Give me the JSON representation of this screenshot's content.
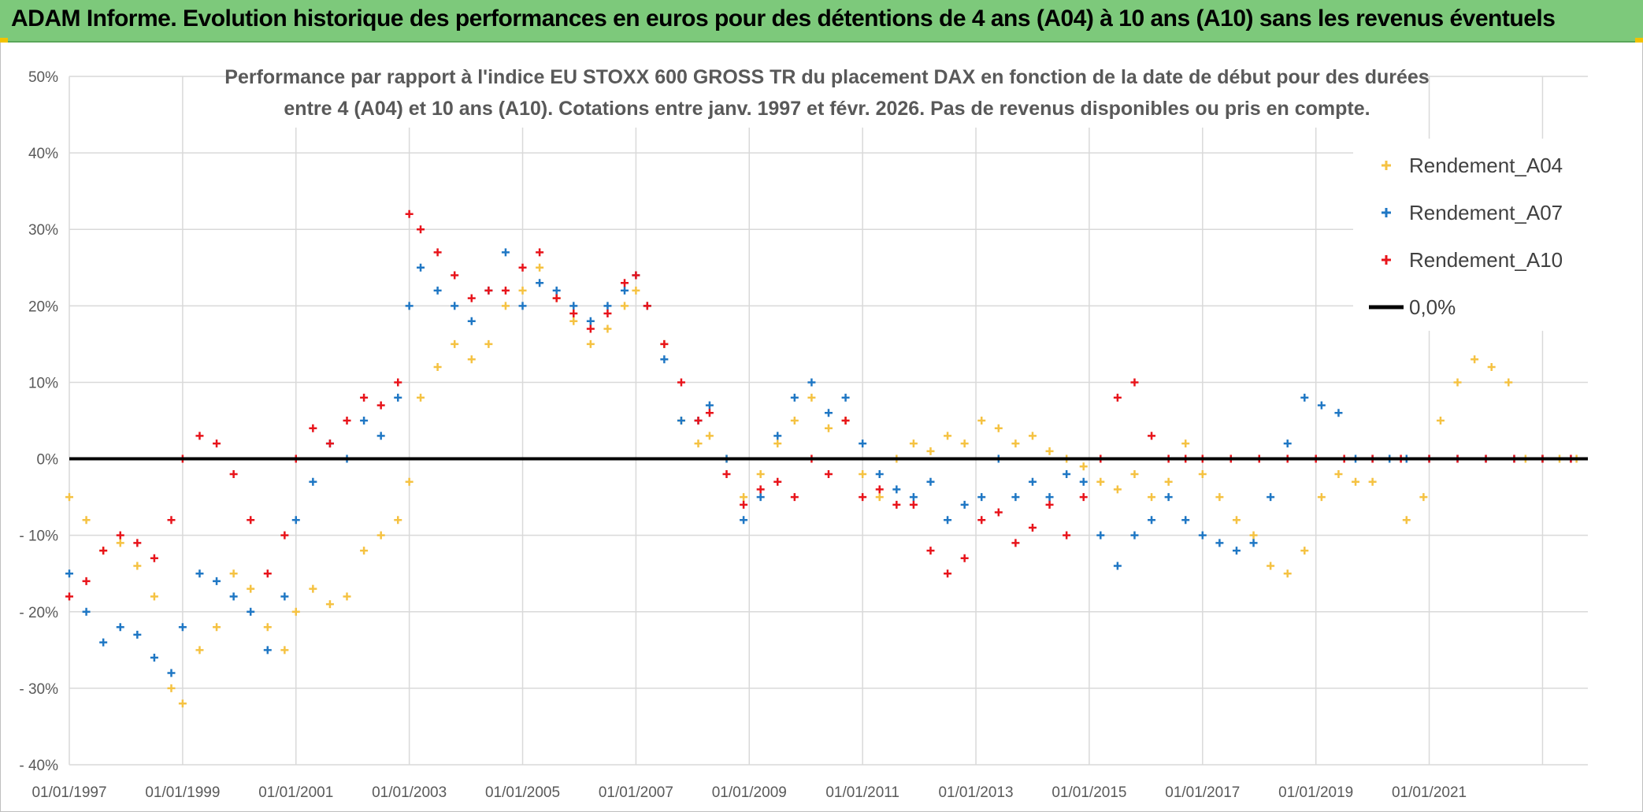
{
  "banner": {
    "title": "ADAM Informe. Evolution historique des performances en euros pour des détentions de 4 ans (A04) à 10 ans (A10) sans les revenus éventuels"
  },
  "chart_data": {
    "type": "scatter",
    "title_lines": [
      "Performance par rapport à l'indice EU STOXX 600 GROSS TR  du placement DAX en fonction de la date de début pour des durées",
      "entre 4 (A04) et 10 ans (A10). Cotations entre janv. 1997 et févr. 2026. Pas de revenus disponibles ou pris en compte."
    ],
    "x_tick_labels": [
      "01/01/1997",
      "01/01/1999",
      "01/01/2001",
      "01/01/2003",
      "01/01/2005",
      "01/01/2007",
      "01/01/2009",
      "01/01/2011",
      "01/01/2013",
      "01/01/2015",
      "01/01/2017",
      "01/01/2019",
      "01/01/2021"
    ],
    "x_range": [
      1997.0,
      2023.8
    ],
    "y_tick_labels": [
      "50%",
      "40%",
      "30%",
      "20%",
      "10%",
      "0%",
      "- 10%",
      "- 20%",
      "- 30%",
      "- 40%"
    ],
    "ylim": [
      -40,
      50
    ],
    "grid": true,
    "legend_position": "top-right",
    "series": [
      {
        "name": "Rendement_A04",
        "color": "#f5c242",
        "marker": "+",
        "points": [
          [
            1997.0,
            -5
          ],
          [
            1997.3,
            -8
          ],
          [
            1997.6,
            -12
          ],
          [
            1997.9,
            -11
          ],
          [
            1998.2,
            -14
          ],
          [
            1998.5,
            -18
          ],
          [
            1998.8,
            -30
          ],
          [
            1999.0,
            -32
          ],
          [
            1999.3,
            -25
          ],
          [
            1999.6,
            -22
          ],
          [
            1999.9,
            -15
          ],
          [
            2000.2,
            -17
          ],
          [
            2000.5,
            -22
          ],
          [
            2000.8,
            -25
          ],
          [
            2001.0,
            -20
          ],
          [
            2001.3,
            -17
          ],
          [
            2001.6,
            -19
          ],
          [
            2001.9,
            -18
          ],
          [
            2002.2,
            -12
          ],
          [
            2002.5,
            -10
          ],
          [
            2002.8,
            -8
          ],
          [
            2003.0,
            -3
          ],
          [
            2003.2,
            8
          ],
          [
            2003.5,
            12
          ],
          [
            2003.8,
            15
          ],
          [
            2004.1,
            13
          ],
          [
            2004.4,
            15
          ],
          [
            2004.7,
            20
          ],
          [
            2005.0,
            22
          ],
          [
            2005.3,
            25
          ],
          [
            2005.6,
            21
          ],
          [
            2005.9,
            18
          ],
          [
            2006.2,
            15
          ],
          [
            2006.5,
            17
          ],
          [
            2006.8,
            20
          ],
          [
            2007.0,
            22
          ],
          [
            2007.2,
            20
          ],
          [
            2007.5,
            15
          ],
          [
            2007.8,
            5
          ],
          [
            2008.1,
            2
          ],
          [
            2008.3,
            3
          ],
          [
            2008.6,
            0
          ],
          [
            2008.9,
            -5
          ],
          [
            2009.2,
            -2
          ],
          [
            2009.5,
            2
          ],
          [
            2009.8,
            5
          ],
          [
            2010.1,
            8
          ],
          [
            2010.4,
            4
          ],
          [
            2010.7,
            5
          ],
          [
            2011.0,
            -2
          ],
          [
            2011.3,
            -5
          ],
          [
            2011.6,
            0
          ],
          [
            2011.9,
            2
          ],
          [
            2012.2,
            1
          ],
          [
            2012.5,
            3
          ],
          [
            2012.8,
            2
          ],
          [
            2013.1,
            5
          ],
          [
            2013.4,
            4
          ],
          [
            2013.7,
            2
          ],
          [
            2014.0,
            3
          ],
          [
            2014.3,
            1
          ],
          [
            2014.6,
            0
          ],
          [
            2014.9,
            -1
          ],
          [
            2015.2,
            -3
          ],
          [
            2015.5,
            -4
          ],
          [
            2015.8,
            -2
          ],
          [
            2016.1,
            -5
          ],
          [
            2016.4,
            -3
          ],
          [
            2016.7,
            2
          ],
          [
            2017.0,
            -2
          ],
          [
            2017.3,
            -5
          ],
          [
            2017.6,
            -8
          ],
          [
            2017.9,
            -10
          ],
          [
            2018.2,
            -14
          ],
          [
            2018.5,
            -15
          ],
          [
            2018.8,
            -12
          ],
          [
            2019.1,
            -5
          ],
          [
            2019.4,
            -2
          ],
          [
            2019.7,
            -3
          ],
          [
            2020.0,
            -3
          ],
          [
            2020.3,
            0
          ],
          [
            2020.6,
            -8
          ],
          [
            2020.9,
            -5
          ],
          [
            2021.2,
            5
          ],
          [
            2021.5,
            10
          ],
          [
            2021.8,
            13
          ],
          [
            2022.1,
            12
          ],
          [
            2022.4,
            10
          ],
          [
            2022.7,
            0
          ],
          [
            2023.0,
            0
          ],
          [
            2023.3,
            0
          ],
          [
            2023.6,
            0
          ]
        ]
      },
      {
        "name": "Rendement_A07",
        "color": "#1f77c4",
        "marker": "+",
        "points": [
          [
            1997.0,
            -15
          ],
          [
            1997.3,
            -20
          ],
          [
            1997.6,
            -24
          ],
          [
            1997.9,
            -22
          ],
          [
            1998.2,
            -23
          ],
          [
            1998.5,
            -26
          ],
          [
            1998.8,
            -28
          ],
          [
            1999.0,
            -22
          ],
          [
            1999.3,
            -15
          ],
          [
            1999.6,
            -16
          ],
          [
            1999.9,
            -18
          ],
          [
            2000.2,
            -20
          ],
          [
            2000.5,
            -25
          ],
          [
            2000.8,
            -18
          ],
          [
            2001.0,
            -8
          ],
          [
            2001.3,
            -3
          ],
          [
            2001.6,
            2
          ],
          [
            2001.9,
            0
          ],
          [
            2002.2,
            5
          ],
          [
            2002.5,
            3
          ],
          [
            2002.8,
            8
          ],
          [
            2003.0,
            20
          ],
          [
            2003.2,
            25
          ],
          [
            2003.5,
            22
          ],
          [
            2003.8,
            20
          ],
          [
            2004.1,
            18
          ],
          [
            2004.4,
            22
          ],
          [
            2004.7,
            27
          ],
          [
            2005.0,
            20
          ],
          [
            2005.3,
            23
          ],
          [
            2005.6,
            22
          ],
          [
            2005.9,
            20
          ],
          [
            2006.2,
            18
          ],
          [
            2006.5,
            20
          ],
          [
            2006.8,
            22
          ],
          [
            2007.0,
            24
          ],
          [
            2007.2,
            20
          ],
          [
            2007.5,
            13
          ],
          [
            2007.8,
            5
          ],
          [
            2008.1,
            5
          ],
          [
            2008.3,
            7
          ],
          [
            2008.6,
            0
          ],
          [
            2008.9,
            -8
          ],
          [
            2009.2,
            -5
          ],
          [
            2009.5,
            3
          ],
          [
            2009.8,
            8
          ],
          [
            2010.1,
            10
          ],
          [
            2010.4,
            6
          ],
          [
            2010.7,
            8
          ],
          [
            2011.0,
            2
          ],
          [
            2011.3,
            -2
          ],
          [
            2011.6,
            -4
          ],
          [
            2011.9,
            -5
          ],
          [
            2012.2,
            -3
          ],
          [
            2012.5,
            -8
          ],
          [
            2012.8,
            -6
          ],
          [
            2013.1,
            -5
          ],
          [
            2013.4,
            0
          ],
          [
            2013.7,
            -5
          ],
          [
            2014.0,
            -3
          ],
          [
            2014.3,
            -5
          ],
          [
            2014.6,
            -2
          ],
          [
            2014.9,
            -3
          ],
          [
            2015.2,
            -10
          ],
          [
            2015.5,
            -14
          ],
          [
            2015.8,
            -10
          ],
          [
            2016.1,
            -8
          ],
          [
            2016.4,
            -5
          ],
          [
            2016.7,
            -8
          ],
          [
            2017.0,
            -10
          ],
          [
            2017.3,
            -11
          ],
          [
            2017.6,
            -12
          ],
          [
            2017.9,
            -11
          ],
          [
            2018.2,
            -5
          ],
          [
            2018.5,
            2
          ],
          [
            2018.8,
            8
          ],
          [
            2019.1,
            7
          ],
          [
            2019.4,
            6
          ],
          [
            2019.7,
            0
          ],
          [
            2020.0,
            0
          ],
          [
            2020.3,
            0
          ],
          [
            2020.6,
            0
          ],
          [
            2021.0,
            0
          ],
          [
            2021.5,
            0
          ],
          [
            2022.0,
            0
          ],
          [
            2022.5,
            0
          ],
          [
            2023.0,
            0
          ],
          [
            2023.5,
            0
          ]
        ]
      },
      {
        "name": "Rendement_A10",
        "color": "#e8141b",
        "marker": "+",
        "points": [
          [
            1997.0,
            -18
          ],
          [
            1997.3,
            -16
          ],
          [
            1997.6,
            -12
          ],
          [
            1997.9,
            -10
          ],
          [
            1998.2,
            -11
          ],
          [
            1998.5,
            -13
          ],
          [
            1998.8,
            -8
          ],
          [
            1999.0,
            0
          ],
          [
            1999.3,
            3
          ],
          [
            1999.6,
            2
          ],
          [
            1999.9,
            -2
          ],
          [
            2000.2,
            -8
          ],
          [
            2000.5,
            -15
          ],
          [
            2000.8,
            -10
          ],
          [
            2001.0,
            0
          ],
          [
            2001.3,
            4
          ],
          [
            2001.6,
            2
          ],
          [
            2001.9,
            5
          ],
          [
            2002.2,
            8
          ],
          [
            2002.5,
            7
          ],
          [
            2002.8,
            10
          ],
          [
            2003.0,
            32
          ],
          [
            2003.2,
            30
          ],
          [
            2003.5,
            27
          ],
          [
            2003.8,
            24
          ],
          [
            2004.1,
            21
          ],
          [
            2004.4,
            22
          ],
          [
            2004.7,
            22
          ],
          [
            2005.0,
            25
          ],
          [
            2005.3,
            27
          ],
          [
            2005.6,
            21
          ],
          [
            2005.9,
            19
          ],
          [
            2006.2,
            17
          ],
          [
            2006.5,
            19
          ],
          [
            2006.8,
            23
          ],
          [
            2007.0,
            24
          ],
          [
            2007.2,
            20
          ],
          [
            2007.5,
            15
          ],
          [
            2007.8,
            10
          ],
          [
            2008.1,
            5
          ],
          [
            2008.3,
            6
          ],
          [
            2008.6,
            -2
          ],
          [
            2008.9,
            -6
          ],
          [
            2009.2,
            -4
          ],
          [
            2009.5,
            -3
          ],
          [
            2009.8,
            -5
          ],
          [
            2010.1,
            0
          ],
          [
            2010.4,
            -2
          ],
          [
            2010.7,
            5
          ],
          [
            2011.0,
            -5
          ],
          [
            2011.3,
            -4
          ],
          [
            2011.6,
            -6
          ],
          [
            2011.9,
            -6
          ],
          [
            2012.2,
            -12
          ],
          [
            2012.5,
            -15
          ],
          [
            2012.8,
            -13
          ],
          [
            2013.1,
            -8
          ],
          [
            2013.4,
            -7
          ],
          [
            2013.7,
            -11
          ],
          [
            2014.0,
            -9
          ],
          [
            2014.3,
            -6
          ],
          [
            2014.6,
            -10
          ],
          [
            2014.9,
            -5
          ],
          [
            2015.2,
            0
          ],
          [
            2015.5,
            8
          ],
          [
            2015.8,
            10
          ],
          [
            2016.1,
            3
          ],
          [
            2016.4,
            0
          ],
          [
            2016.7,
            0
          ],
          [
            2017.0,
            0
          ],
          [
            2017.5,
            0
          ],
          [
            2018.0,
            0
          ],
          [
            2018.5,
            0
          ],
          [
            2019.0,
            0
          ],
          [
            2019.5,
            0
          ],
          [
            2020.0,
            0
          ],
          [
            2020.5,
            0
          ],
          [
            2021.0,
            0
          ],
          [
            2021.5,
            0
          ],
          [
            2022.0,
            0
          ],
          [
            2022.5,
            0
          ],
          [
            2023.0,
            0
          ],
          [
            2023.5,
            0
          ]
        ]
      },
      {
        "name": "0,0%",
        "color": "#000000",
        "type": "line",
        "points": [
          [
            1997.0,
            0
          ],
          [
            2023.8,
            0
          ]
        ]
      }
    ]
  }
}
